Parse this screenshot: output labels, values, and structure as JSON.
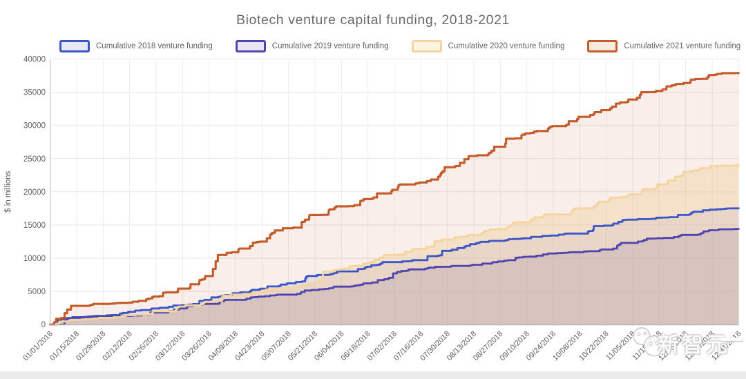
{
  "page": {
    "background": "#ffffff",
    "bottom_strip_color": "#ebebeb"
  },
  "chart_data": {
    "type": "area",
    "title": "Biotech venture capital funding, 2018-2021",
    "xlabel": "",
    "ylabel": "$ in millions",
    "ylim": [
      0,
      40000
    ],
    "y_ticks": [
      0,
      5000,
      10000,
      15000,
      20000,
      25000,
      30000,
      35000,
      40000
    ],
    "grid": true,
    "legend_position": "top",
    "x_tick_rotation": -45,
    "line_style": "steps",
    "x": [
      "01/01/2018",
      "01/15/2018",
      "01/29/2018",
      "02/12/2018",
      "02/26/2018",
      "03/12/2018",
      "03/26/2018",
      "04/09/2018",
      "04/23/2018",
      "05/07/2018",
      "05/21/2018",
      "06/04/2018",
      "06/18/2018",
      "07/02/2018",
      "07/16/2018",
      "07/30/2018",
      "08/13/2018",
      "08/27/2018",
      "09/10/2018",
      "09/24/2018",
      "10/08/2018",
      "10/22/2018",
      "11/05/2018",
      "11/19/2018",
      "12/03/2018",
      "12/17/2018",
      "12/31/2018"
    ],
    "series": [
      {
        "name": "Cumulative 2018 venture funding",
        "year": "2018",
        "color": "#3a55c5",
        "area_fill": "rgba(58,85,197,0.10)",
        "legend_fill": "#e8e8f8",
        "values": [
          0,
          1100,
          1300,
          1900,
          2400,
          2900,
          3700,
          4700,
          5400,
          6200,
          7300,
          8000,
          8700,
          9400,
          9700,
          11100,
          12100,
          12600,
          13000,
          13400,
          13700,
          14900,
          15800,
          16100,
          16500,
          17300,
          17500
        ]
      },
      {
        "name": "Cumulative 2019 venture funding",
        "year": "2019",
        "color": "#5044ae",
        "area_fill": "rgba(80,68,174,0.18)",
        "legend_fill": "#e9e5f7",
        "values": [
          0,
          900,
          1100,
          1300,
          1800,
          2400,
          3100,
          3700,
          4200,
          4500,
          5200,
          5700,
          6200,
          7700,
          8300,
          8700,
          9000,
          9500,
          10200,
          10700,
          10900,
          11300,
          12300,
          13000,
          13500,
          14200,
          14400
        ]
      },
      {
        "name": "Cumulative 2020 venture funding",
        "year": "2020",
        "color": "#f3d59d",
        "area_fill": "rgba(243,213,157,0.35)",
        "legend_fill": "#fdf5e1",
        "values": [
          0,
          700,
          1000,
          1400,
          2000,
          2700,
          3400,
          4500,
          4900,
          5500,
          6300,
          8300,
          9200,
          10500,
          11400,
          12800,
          13500,
          14400,
          15400,
          16600,
          17500,
          18500,
          19600,
          21100,
          23000,
          23900,
          24000
        ]
      },
      {
        "name": "Cumulative 2021 venture funding",
        "year": "2021",
        "color": "#c45b2a",
        "area_fill": "rgba(198,91,42,0.10)",
        "legend_fill": "#fae9de",
        "values": [
          0,
          2800,
          3100,
          3300,
          4200,
          5400,
          7300,
          10900,
          12500,
          14500,
          16500,
          17800,
          18900,
          20300,
          21400,
          23700,
          25400,
          26800,
          28800,
          29900,
          31300,
          32300,
          33900,
          35200,
          36400,
          37600,
          37900
        ]
      }
    ]
  },
  "watermark": {
    "text": "新智元"
  }
}
